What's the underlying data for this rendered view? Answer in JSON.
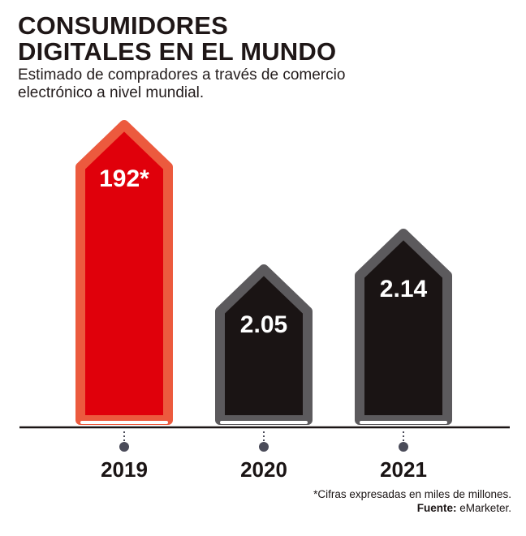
{
  "header": {
    "title_line1": "CONSUMIDORES",
    "title_line2": "DIGITALES EN EL MUNDO",
    "subtitle_line1": "Estimado de compradores a través de comercio",
    "subtitle_line2": "electrónico a nivel mundial."
  },
  "footer": {
    "note": "*Cifras expresadas en miles de millones.",
    "source_label": "Fuente:",
    "source_value": "eMarketer."
  },
  "colors": {
    "highlight_fill": "#e0000b",
    "highlight_border": "#ec5a3e",
    "normal_fill": "#1a1414",
    "normal_border": "#5c5a5d",
    "axis": "#1a1414",
    "marker": "#4b4c5a"
  },
  "chart_data": {
    "type": "bar",
    "categories": [
      "2019",
      "2020",
      "2021"
    ],
    "values": [
      192,
      2.05,
      2.14
    ],
    "value_labels": [
      "192*",
      "2.05",
      "2.14"
    ],
    "highlight_index": 0,
    "note": "Bar heights are not drawn to scale; the 2019 bar is the tallest, the 2021 bar is taller than the 2020 bar.",
    "title": "CONSUMIDORES DIGITALES EN EL MUNDO",
    "xlabel": "",
    "ylabel": "",
    "grid": false,
    "legend": "none"
  }
}
